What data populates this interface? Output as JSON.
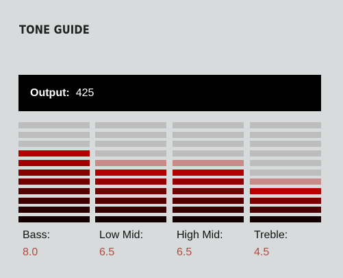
{
  "title": "TONE GUIDE",
  "output": {
    "label": "Output:",
    "value": "425"
  },
  "segments_per_meter": 11,
  "colors": {
    "inactive": "#bdbdbd",
    "ghost": "#c98a8a",
    "lit_top": "#b30000",
    "lit_bottom": "#120000"
  },
  "controls": [
    {
      "label": "Bass:",
      "value": "8.0",
      "level": 8.0
    },
    {
      "label": "Low Mid:",
      "value": "6.5",
      "level": 6.5
    },
    {
      "label": "High Mid:",
      "value": "6.5",
      "level": 6.5
    },
    {
      "label": "Treble:",
      "value": "4.5",
      "level": 4.5
    }
  ]
}
